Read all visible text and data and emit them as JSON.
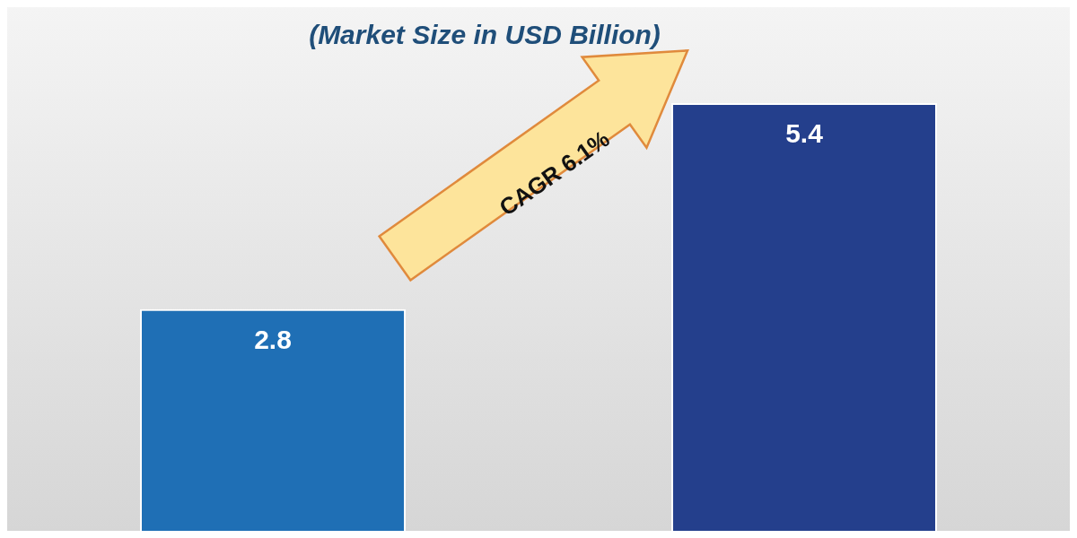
{
  "chart_data": {
    "type": "bar",
    "subtitle": "(Market Size in USD Billion)",
    "categories": [
      null,
      null
    ],
    "values": [
      2.8,
      5.4
    ],
    "colors": [
      "#1f6fb5",
      "#243f8c"
    ],
    "data_labels": true,
    "annotations": [
      "CAGR 6.1%"
    ]
  }
}
